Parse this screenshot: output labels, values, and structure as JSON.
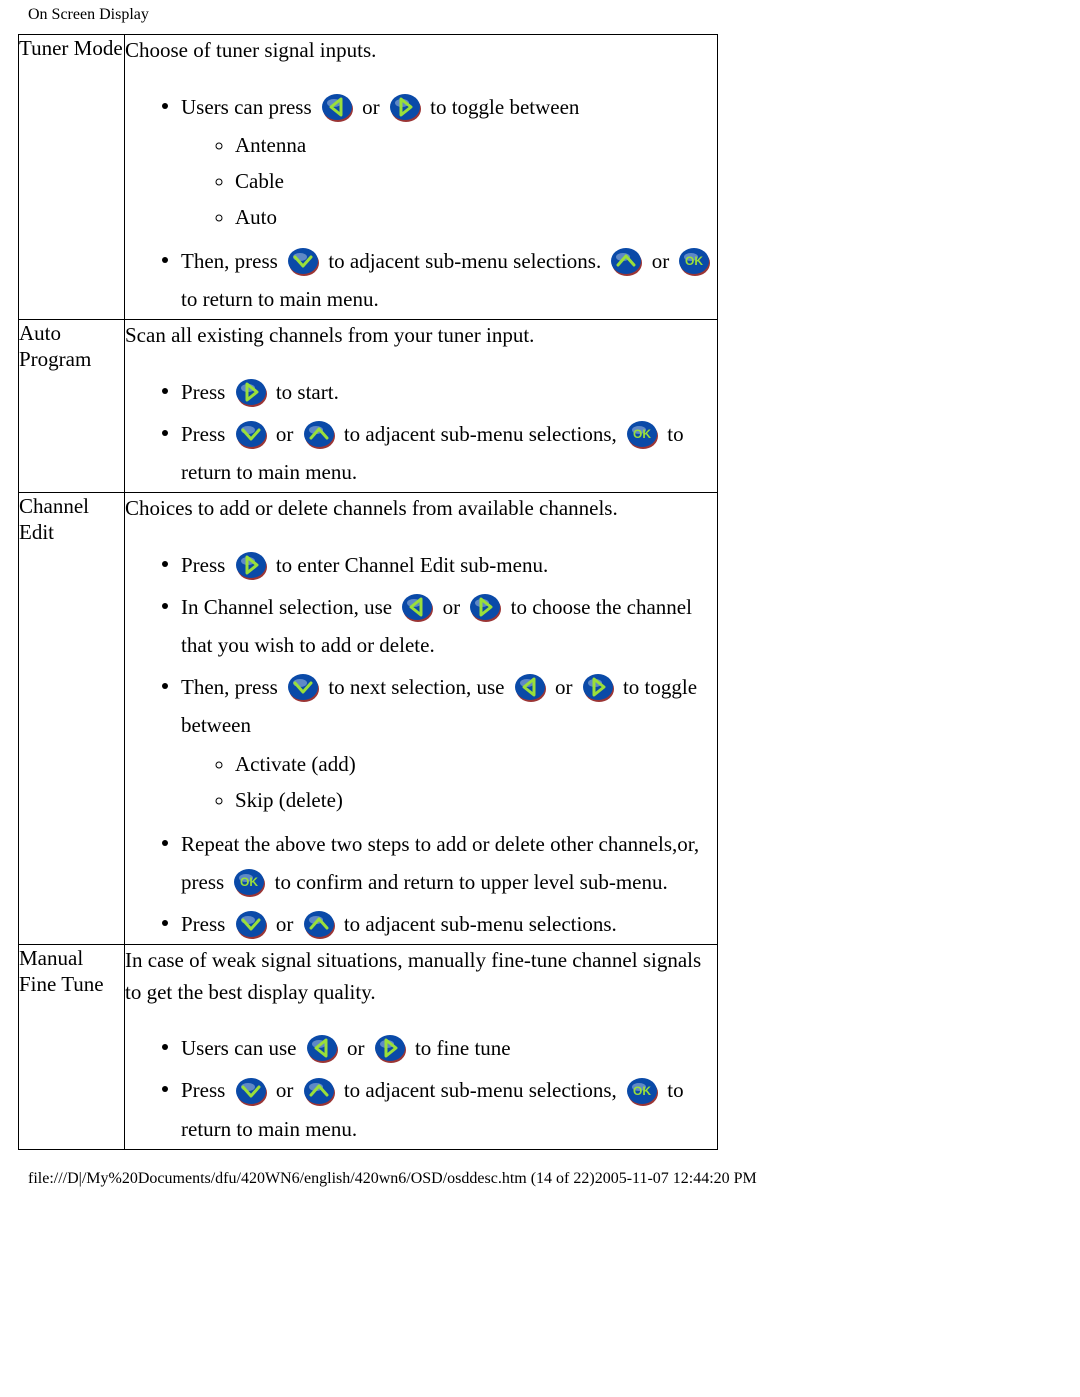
{
  "page": {
    "title": "On Screen Display",
    "footer": "file:///D|/My%20Documents/dfu/420WN6/english/420wn6/OSD/osddesc.htm (14 of 22)2005-11-07 12:44:20 PM"
  },
  "icons": {
    "left": {
      "bg": "#0a4aa8",
      "fg": "#9adf3a",
      "shadow": "#8a1212"
    },
    "right": {
      "bg": "#0a4aa8",
      "fg": "#9adf3a",
      "shadow": "#8a1212"
    },
    "down": {
      "bg": "#0a4aa8",
      "fg": "#9adf3a",
      "shadow": "#8a1212"
    },
    "up": {
      "bg": "#0a4aa8",
      "fg": "#9adf3a",
      "shadow": "#8a1212"
    },
    "ok": {
      "bg": "#0a4aa8",
      "fg": "#9adf3a",
      "shadow": "#8a1212",
      "label": "OK"
    }
  },
  "rows": {
    "tuner_mode": {
      "label": "Tuner Mode",
      "intro": "Choose of tuner signal inputs.",
      "b1_pre": "Users can press ",
      "b1_mid": " or ",
      "b1_post": " to toggle between",
      "opt1": "Antenna",
      "opt2": "Cable",
      "opt3": "Auto",
      "b2_pre": "Then, press  ",
      "b2_mid": " to adjacent sub-menu selections.",
      "b2_or": " or ",
      "b2_post": " to return to main menu."
    },
    "auto_program": {
      "label": "Auto Program",
      "intro": "Scan all existing channels from your tuner input.",
      "b1_pre": "Press ",
      "b1_post": " to start.",
      "b2_pre": "Press ",
      "b2_mid1": " or ",
      "b2_mid2": " to adjacent sub-menu selections, ",
      "b2_post": " to return to main menu."
    },
    "channel_edit": {
      "label": "Channel Edit",
      "intro": "Choices to add or delete channels from available channels.",
      "b1_pre": "Press ",
      "b1_post": " to enter Channel Edit sub-menu.",
      "b2_pre": "In Channel selection, use ",
      "b2_mid": " or ",
      "b2_post": " to choose the channel that you wish to add or delete.",
      "b3_pre": "Then, press ",
      "b3_mid1": " to next selection, use ",
      "b3_mid2": " or ",
      "b3_post": " to toggle between",
      "opt1": "Activate (add)",
      "opt2": "Skip (delete)",
      "b4_pre": "Repeat the above two steps to add or delete other channels,or, press  ",
      "b4_post": " to confirm and return to upper level sub-menu.",
      "b5_pre": "Press ",
      "b5_mid": " or ",
      "b5_post": " to adjacent sub-menu selections."
    },
    "manual_fine_tune": {
      "label": "Manual Fine Tune",
      "intro": "In case of weak signal situations, manually fine-tune channel signals to get the best display quality.",
      "b1_pre": "Users can use ",
      "b1_mid": " or ",
      "b1_post": " to fine tune",
      "b2_pre": "Press ",
      "b2_mid1": " or ",
      "b2_mid2": " to adjacent sub-menu selections, ",
      "b2_post": " to return to main menu."
    }
  }
}
